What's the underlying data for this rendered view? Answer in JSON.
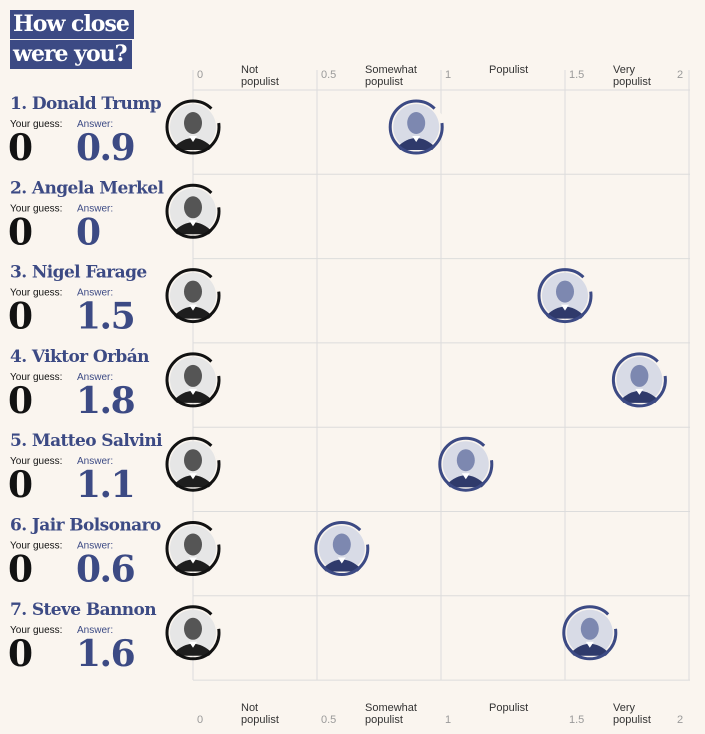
{
  "title": "How close were you?",
  "labels": {
    "guess": "Your guess:",
    "answer": "Answer:"
  },
  "colors": {
    "accent": "#3c4a84",
    "guess_ring": "#121212",
    "background": "#faf5ef",
    "grid": "#dcdcdc"
  },
  "chart_data": {
    "type": "scatter",
    "xlim": [
      0,
      2
    ],
    "x_ticks": [
      "0",
      "0.5",
      "1",
      "1.5",
      "2"
    ],
    "category_labels": [
      {
        "x": 0.25,
        "lines": [
          "Not",
          "populist"
        ]
      },
      {
        "x": 0.75,
        "lines": [
          "Somewhat",
          "populist"
        ]
      },
      {
        "x": 1.25,
        "lines": [
          "Populist"
        ]
      },
      {
        "x": 1.75,
        "lines": [
          "Very",
          "populist"
        ]
      }
    ],
    "grid": true,
    "rows": [
      {
        "rank": "1.",
        "name": "Donald Trump",
        "guess": 0,
        "guess_text": "0",
        "answer": 0.9,
        "answer_text": "0.9"
      },
      {
        "rank": "2.",
        "name": "Angela Merkel",
        "guess": 0,
        "guess_text": "0",
        "answer": 0,
        "answer_text": "0"
      },
      {
        "rank": "3.",
        "name": "Nigel Farage",
        "guess": 0,
        "guess_text": "0",
        "answer": 1.5,
        "answer_text": "1.5"
      },
      {
        "rank": "4.",
        "name": "Viktor Orbán",
        "guess": 0,
        "guess_text": "0",
        "answer": 1.8,
        "answer_text": "1.8"
      },
      {
        "rank": "5.",
        "name": "Matteo Salvini",
        "guess": 0,
        "guess_text": "0",
        "answer": 1.1,
        "answer_text": "1.1"
      },
      {
        "rank": "6.",
        "name": "Jair Bolsonaro",
        "guess": 0,
        "guess_text": "0",
        "answer": 0.6,
        "answer_text": "0.6"
      },
      {
        "rank": "7.",
        "name": "Steve Bannon",
        "guess": 0,
        "guess_text": "0",
        "answer": 1.6,
        "answer_text": "1.6"
      }
    ]
  }
}
